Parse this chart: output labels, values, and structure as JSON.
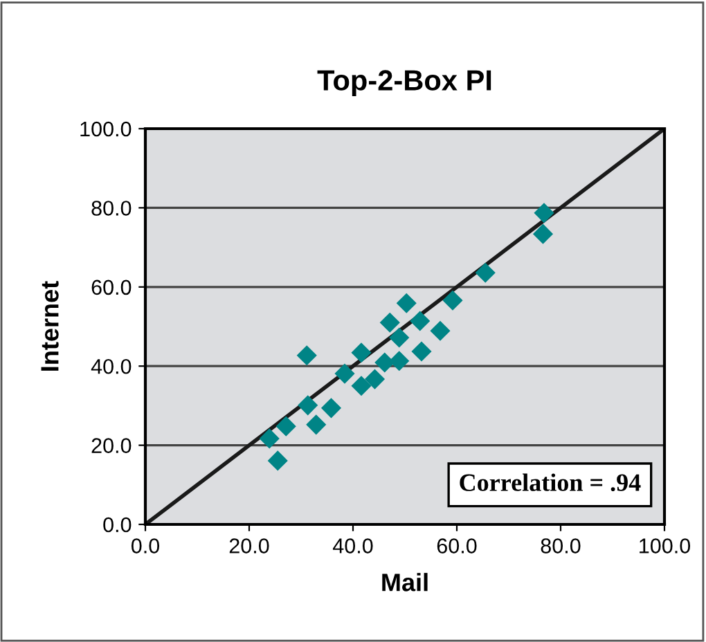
{
  "chart_data": {
    "type": "scatter",
    "title": "Top-2-Box PI",
    "xlabel": "Mail",
    "ylabel": "Internet",
    "xlim": [
      0,
      100
    ],
    "ylim": [
      0,
      100
    ],
    "xticks": [
      {
        "value": 0,
        "label": "0.0"
      },
      {
        "value": 20,
        "label": "20.0"
      },
      {
        "value": 40,
        "label": "40.0"
      },
      {
        "value": 60,
        "label": "60.0"
      },
      {
        "value": 80,
        "label": "80.0"
      },
      {
        "value": 100,
        "label": "100.0"
      }
    ],
    "yticks": [
      {
        "value": 0,
        "label": "0.0"
      },
      {
        "value": 20,
        "label": "20.0"
      },
      {
        "value": 40,
        "label": "40.0"
      },
      {
        "value": 60,
        "label": "60.0"
      },
      {
        "value": 80,
        "label": "80.0"
      },
      {
        "value": 100,
        "label": "100.0"
      }
    ],
    "grid": "y",
    "marker": "diamond",
    "legend": false,
    "series": [
      {
        "color": "#008486",
        "x": [
          23.9,
          25.5,
          27.1,
          31.3,
          31.1,
          32.9,
          35.8,
          38.4,
          41.6,
          41.6,
          44.2,
          46.1,
          47.1,
          48.9,
          48.9,
          50.3,
          52.9,
          53.2,
          56.8,
          59.2,
          65.5,
          76.6,
          76.8
        ],
        "values": [
          21.7,
          16.1,
          24.8,
          30.1,
          42.7,
          25.2,
          29.4,
          38.1,
          43.4,
          35.0,
          36.7,
          40.9,
          51.0,
          41.3,
          47.2,
          55.9,
          51.4,
          43.7,
          48.9,
          56.6,
          63.6,
          73.4,
          78.7
        ]
      },
      {
        "type": "line",
        "color": "#1a1a1a",
        "x": [
          0,
          100
        ],
        "values": [
          0,
          100
        ],
        "marker": "none",
        "line_style": "solid"
      }
    ],
    "annotations": [
      "Correlation = .94"
    ]
  }
}
